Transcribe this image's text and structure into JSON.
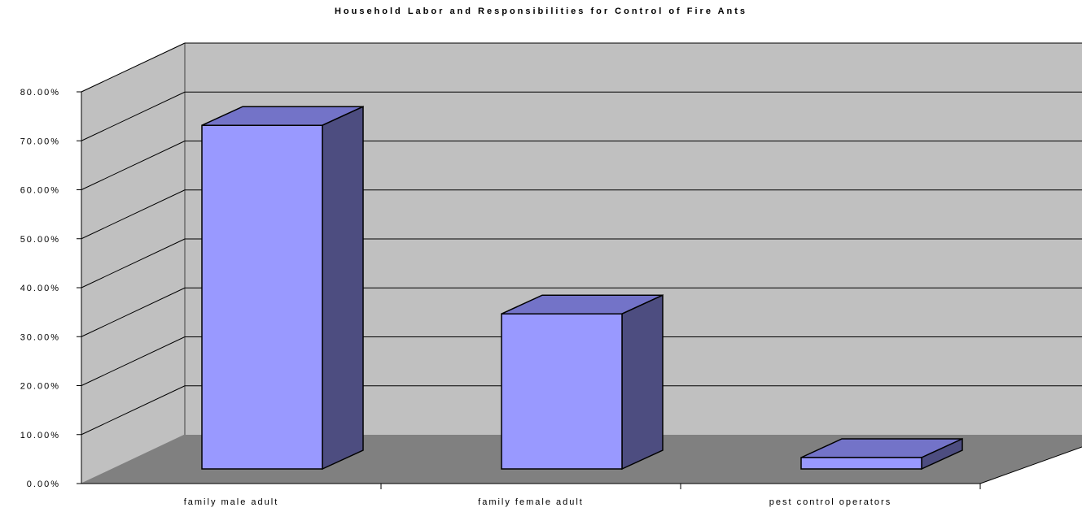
{
  "chart_data": {
    "type": "bar",
    "title": "Household Labor and Responsibilities for Control of Fire Ants",
    "categories": [
      "family male adult",
      "family female adult",
      "pest control operators"
    ],
    "values": [
      71.0,
      32.5,
      1.0
    ],
    "ylim": [
      0,
      80
    ],
    "y_tick_labels": [
      "0.00%",
      "10.00%",
      "20.00%",
      "30.00%",
      "40.00%",
      "50.00%",
      "60.00%",
      "70.00%",
      "80.00%"
    ],
    "xlabel": "",
    "ylabel": "",
    "grid": true,
    "legend": "none",
    "colors": {
      "bar_front": "#9999ff",
      "bar_top": "#7373c8",
      "bar_side": "#4d4d80",
      "back_wall": "#c0c0c0",
      "side_wall": "#c0c0c0",
      "floor": "#808080"
    }
  }
}
